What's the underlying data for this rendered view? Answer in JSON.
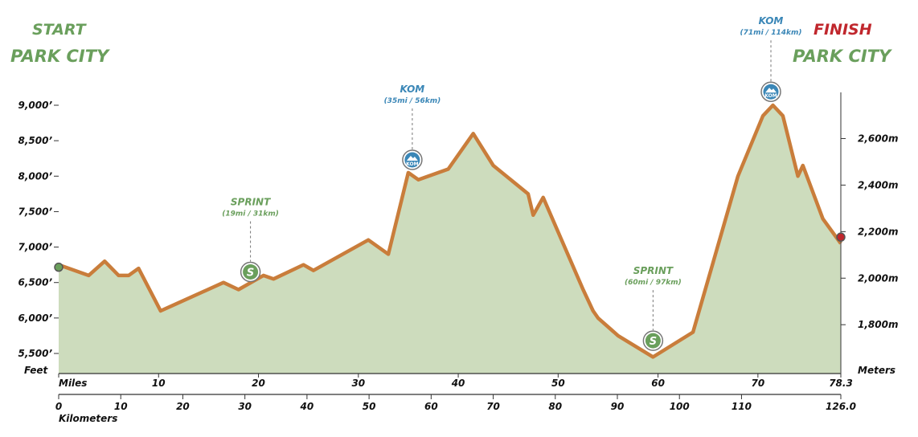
{
  "header": {
    "start_label": "START",
    "start_city": "PARK CITY",
    "finish_label": "FINISH",
    "finish_city": "PARK CITY"
  },
  "colors": {
    "green": "#6a9f5c",
    "red": "#c0272d",
    "blue": "#3b87b7",
    "profile_line": "#c97d3b",
    "profile_fill": "#cddcbd"
  },
  "chart_data": {
    "type": "area",
    "x_unit_label": "Miles",
    "x2_unit_label": "Kilometers",
    "y_unit_label": "Feet",
    "y2_unit_label": "Meters",
    "xlim": [
      0,
      78.3
    ],
    "ylim": [
      5200,
      9100
    ],
    "x_ticks": [
      "0",
      "10",
      "20",
      "30",
      "40",
      "50",
      "60",
      "70",
      "78.3"
    ],
    "x_tick_values": [
      0,
      10,
      20,
      30,
      40,
      50,
      60,
      70,
      78.3
    ],
    "km_ticks": [
      "0",
      "10",
      "20",
      "30",
      "40",
      "50",
      "60",
      "70",
      "80",
      "90",
      "100",
      "110",
      "126.0"
    ],
    "km_tick_values": [
      0,
      10,
      20,
      30,
      40,
      50,
      60,
      70,
      80,
      90,
      100,
      110,
      126.0
    ],
    "y_ticks": [
      "5,500’",
      "6,000’",
      "6,500’",
      "7,000’",
      "7,500’",
      "8,000’",
      "8,500’",
      "9,000’"
    ],
    "y_tick_values": [
      5500,
      6000,
      6500,
      7000,
      7500,
      8000,
      8500,
      9000
    ],
    "y2_ticks": [
      "1,800m",
      "2,000m",
      "2,200m",
      "2,400m",
      "2,600m"
    ],
    "y2_tick_values": [
      1800,
      2000,
      2200,
      2400,
      2600
    ],
    "x": [
      0,
      3,
      4.6,
      6,
      7,
      8,
      10.2,
      16.5,
      18,
      20.5,
      21.5,
      24.5,
      25.5,
      31,
      33,
      35,
      36,
      39,
      41.5,
      43.5,
      47,
      47.5,
      48.5,
      52.5,
      53.5,
      54,
      56,
      59.5,
      63.5,
      68,
      70.5,
      71.5,
      72.5,
      74,
      74.5,
      76.5,
      78.3
    ],
    "y": [
      6750,
      6600,
      6800,
      6600,
      6600,
      6700,
      6100,
      6500,
      6400,
      6600,
      6550,
      6750,
      6670,
      7100,
      6900,
      8050,
      7950,
      8100,
      8600,
      8150,
      7750,
      7450,
      7700,
      6400,
      6100,
      6000,
      5750,
      5450,
      5800,
      8000,
      8850,
      9000,
      8850,
      8000,
      8150,
      7400,
      7050
    ],
    "annotations": [
      {
        "type": "sprint",
        "icon": "S",
        "title": "SPRINT",
        "subtitle": "(19mi / 31km)",
        "mile": 19.2,
        "elev": 6650
      },
      {
        "type": "kom",
        "icon": "KOM",
        "title": "KOM",
        "subtitle": "(35mi / 56km)",
        "mile": 35.4,
        "elev": 8230
      },
      {
        "type": "sprint",
        "icon": "S",
        "title": "SPRINT",
        "subtitle": "(60mi / 97km)",
        "mile": 59.5,
        "elev": 5680
      },
      {
        "type": "kom",
        "icon": "KOM",
        "title": "KOM",
        "subtitle": "(71mi / 114km)",
        "mile": 71.3,
        "elev": 9190
      }
    ]
  }
}
